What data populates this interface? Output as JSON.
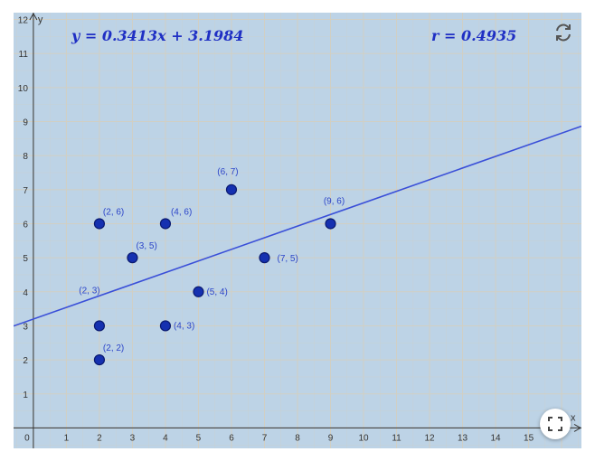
{
  "equation": {
    "line": "y = 0.3413x + 3.1984",
    "r": "r = 0.4935"
  },
  "icons": {
    "reset": "reset-arrows-icon",
    "fullscreen": "fullscreen-icon"
  },
  "colors": {
    "background": "#bdd3e6",
    "grid": "#d4cfc0",
    "point": "#1530b0",
    "line": "#3a4fd8",
    "label": "#2d45c8",
    "text": "#1f2fc4"
  },
  "chart_data": {
    "type": "scatter",
    "xlabel": "x",
    "ylabel": "y",
    "xlim": [
      -0.6,
      16.6
    ],
    "ylim": [
      -0.6,
      12.2
    ],
    "x_ticks": [
      "0",
      "1",
      "2",
      "3",
      "4",
      "5",
      "6",
      "7",
      "8",
      "9",
      "10",
      "11",
      "12",
      "13",
      "14",
      "15"
    ],
    "y_ticks": [
      "1",
      "2",
      "3",
      "4",
      "5",
      "6",
      "7",
      "8",
      "9",
      "10",
      "11",
      "12"
    ],
    "grid": true,
    "points": [
      {
        "x": 2,
        "y": 6,
        "label": "(2, 6)"
      },
      {
        "x": 4,
        "y": 6,
        "label": "(4, 6)"
      },
      {
        "x": 6,
        "y": 7,
        "label": "(6, 7)"
      },
      {
        "x": 3,
        "y": 5,
        "label": "(3, 5)"
      },
      {
        "x": 9,
        "y": 6,
        "label": "(9, 6)"
      },
      {
        "x": 7,
        "y": 5,
        "label": "(7, 5)"
      },
      {
        "x": 2,
        "y": 3,
        "label": "(2, 3)"
      },
      {
        "x": 5,
        "y": 4,
        "label": "(5, 4)"
      },
      {
        "x": 4,
        "y": 3,
        "label": "(4, 3)"
      },
      {
        "x": 2,
        "y": 2,
        "label": "(2, 2)"
      }
    ],
    "regression": {
      "slope": 0.3413,
      "intercept": 3.1984
    }
  }
}
